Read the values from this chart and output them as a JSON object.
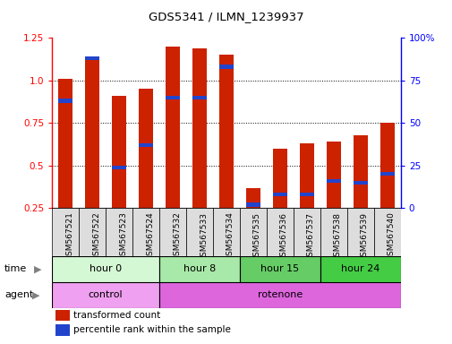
{
  "title": "GDS5341 / ILMN_1239937",
  "samples": [
    "GSM567521",
    "GSM567522",
    "GSM567523",
    "GSM567524",
    "GSM567532",
    "GSM567533",
    "GSM567534",
    "GSM567535",
    "GSM567536",
    "GSM567537",
    "GSM567538",
    "GSM567539",
    "GSM567540"
  ],
  "red_values": [
    1.01,
    1.13,
    0.91,
    0.95,
    1.2,
    1.19,
    1.15,
    0.37,
    0.6,
    0.63,
    0.64,
    0.68,
    0.75
  ],
  "blue_values": [
    0.88,
    1.13,
    0.49,
    0.62,
    0.9,
    0.9,
    1.08,
    0.27,
    0.33,
    0.33,
    0.41,
    0.4,
    0.45
  ],
  "ylim_left": [
    0.25,
    1.25
  ],
  "ylim_right": [
    0,
    100
  ],
  "yticks_left": [
    0.25,
    0.5,
    0.75,
    1.0,
    1.25
  ],
  "yticks_right": [
    0,
    25,
    50,
    75,
    100
  ],
  "bar_color": "#cc2200",
  "blue_color": "#2244cc",
  "time_groups": [
    {
      "label": "hour 0",
      "start": 0,
      "end": 4,
      "color": "#d4f7d4"
    },
    {
      "label": "hour 8",
      "start": 4,
      "end": 7,
      "color": "#a8e8a8"
    },
    {
      "label": "hour 15",
      "start": 7,
      "end": 10,
      "color": "#66cc66"
    },
    {
      "label": "hour 24",
      "start": 10,
      "end": 13,
      "color": "#44cc44"
    }
  ],
  "agent_groups": [
    {
      "label": "control",
      "start": 0,
      "end": 4,
      "color": "#f0a0f0"
    },
    {
      "label": "rotenone",
      "start": 4,
      "end": 13,
      "color": "#dd66dd"
    }
  ],
  "legend_red": "transformed count",
  "legend_blue": "percentile rank within the sample",
  "bar_width": 0.55,
  "sample_bg": "#dddddd",
  "bg_color": "#ffffff"
}
